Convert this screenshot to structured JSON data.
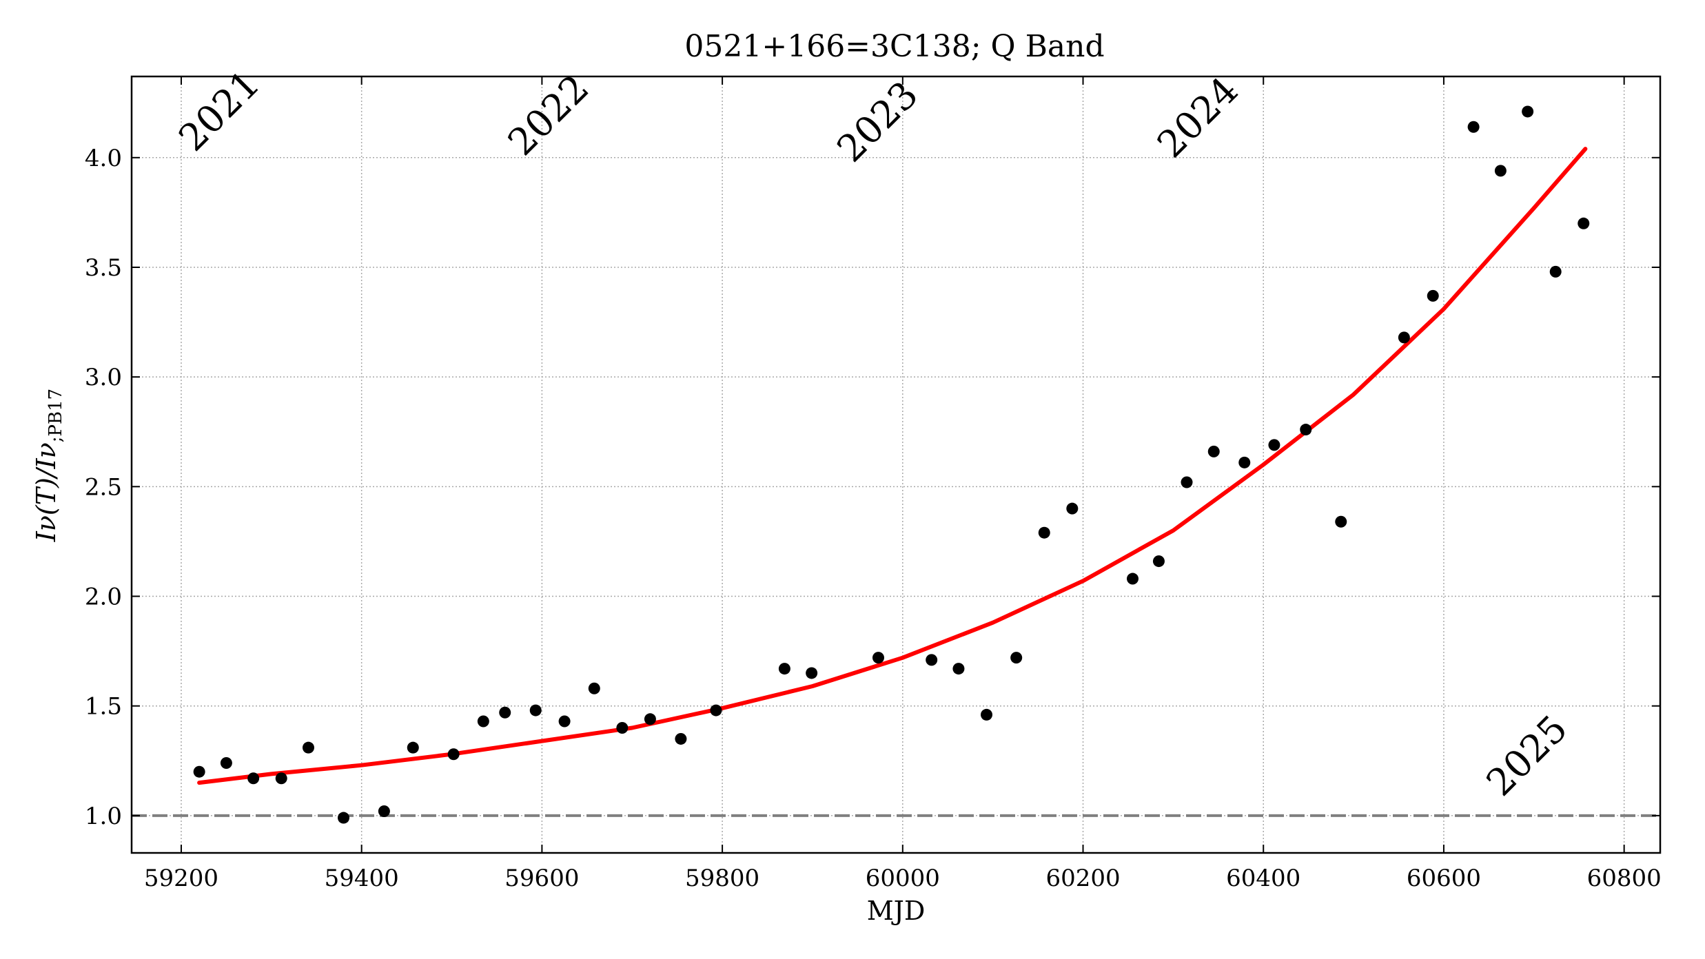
{
  "chart_data": {
    "type": "scatter",
    "title": "0521+166=3C138; Q Band",
    "xlabel": "MJD",
    "ylabel_main": "Iν(T)/Iν",
    "ylabel_sub": ";PB17",
    "xlim": [
      59145,
      60840
    ],
    "ylim": [
      0.83,
      4.37
    ],
    "xticks": [
      59200,
      59400,
      59600,
      59800,
      60000,
      60200,
      60400,
      60600,
      60800
    ],
    "xtick_labels": [
      "59200",
      "59400",
      "59600",
      "59800",
      "60000",
      "60200",
      "60400",
      "60600",
      "60800"
    ],
    "yticks": [
      1.0,
      1.5,
      2.0,
      2.5,
      3.0,
      3.5,
      4.0
    ],
    "ytick_labels": [
      "1.0",
      "1.5",
      "2.0",
      "2.5",
      "3.0",
      "3.5",
      "4.0"
    ],
    "grid": true,
    "year_markers": [
      {
        "label": "2021",
        "mjd": 59215,
        "y": 4.02
      },
      {
        "label": "2022",
        "mjd": 59580,
        "y": 4.0
      },
      {
        "label": "2023",
        "mjd": 59945,
        "y": 3.97
      },
      {
        "label": "2024",
        "mjd": 60300,
        "y": 3.99
      },
      {
        "label": "2025",
        "mjd": 60665,
        "y": 1.08
      }
    ],
    "reference_line": {
      "y": 1.0,
      "style": "dashed",
      "color": "#808080"
    },
    "fit": {
      "color": "#ff0000",
      "x": [
        59220,
        59300,
        59400,
        59500,
        59600,
        59700,
        59800,
        59900,
        60000,
        60100,
        60200,
        60300,
        60400,
        60500,
        60600,
        60700,
        60757
      ],
      "y": [
        1.15,
        1.19,
        1.23,
        1.28,
        1.34,
        1.4,
        1.49,
        1.59,
        1.72,
        1.88,
        2.07,
        2.3,
        2.6,
        2.92,
        3.31,
        3.77,
        4.04
      ]
    },
    "points": {
      "color": "#000000",
      "x": [
        59220,
        59250,
        59280,
        59311,
        59341,
        59380,
        59425,
        59457,
        59502,
        59535,
        59559,
        59593,
        59625,
        59658,
        59689,
        59720,
        59754,
        59793,
        59869,
        59899,
        59973,
        60032,
        60062,
        60093,
        60126,
        60157,
        60188,
        60255,
        60284,
        60315,
        60345,
        60379,
        60412,
        60447,
        60486,
        60556,
        60588,
        60633,
        60663,
        60693,
        60724,
        60755
      ],
      "y": [
        1.2,
        1.24,
        1.17,
        1.17,
        1.31,
        0.99,
        1.02,
        1.31,
        1.28,
        1.43,
        1.47,
        1.48,
        1.43,
        1.58,
        1.4,
        1.44,
        1.35,
        1.48,
        1.67,
        1.65,
        1.72,
        1.71,
        1.67,
        1.46,
        1.72,
        2.29,
        2.4,
        2.08,
        2.16,
        2.52,
        2.66,
        2.61,
        2.69,
        2.76,
        2.34,
        3.18,
        3.37,
        4.14,
        3.94,
        4.21,
        3.48,
        3.7
      ]
    }
  }
}
